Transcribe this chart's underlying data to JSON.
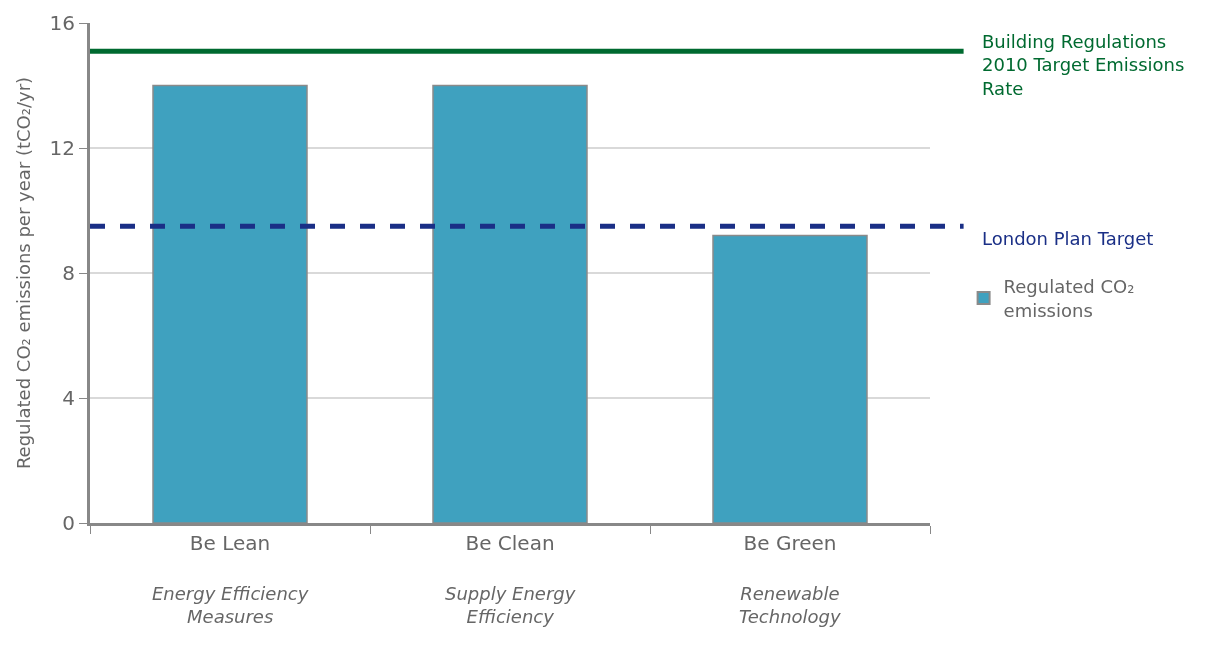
{
  "chart_data": {
    "type": "bar",
    "ylabel": "Regulated CO₂ emissions per year (tCO₂/yr)",
    "categories": [
      "Be Lean",
      "Be Clean",
      "Be Green"
    ],
    "series": [
      {
        "name": "Regulated CO₂\nemissions",
        "color": "#3fa1bf",
        "values": [
          14.0,
          14.0,
          9.2
        ]
      }
    ],
    "ylim": [
      0,
      16
    ],
    "yticks": [
      0,
      4,
      8,
      12,
      16
    ],
    "grid": "y",
    "legend": "right",
    "ref_lines": [
      {
        "axis": "y",
        "value": 15.1,
        "label": "Building Regulations\n2010 Target Emissions\nRate",
        "color": "#006a30",
        "line_style": "solid"
      },
      {
        "axis": "y",
        "value": 9.5,
        "label": "London Plan Target",
        "color": "#1a2f86",
        "line_style": "dashed"
      }
    ],
    "annotations": [
      "Energy Efficiency\nMeasures",
      "Supply Energy\nEfficiency",
      "Renewable\nTechnology"
    ]
  }
}
